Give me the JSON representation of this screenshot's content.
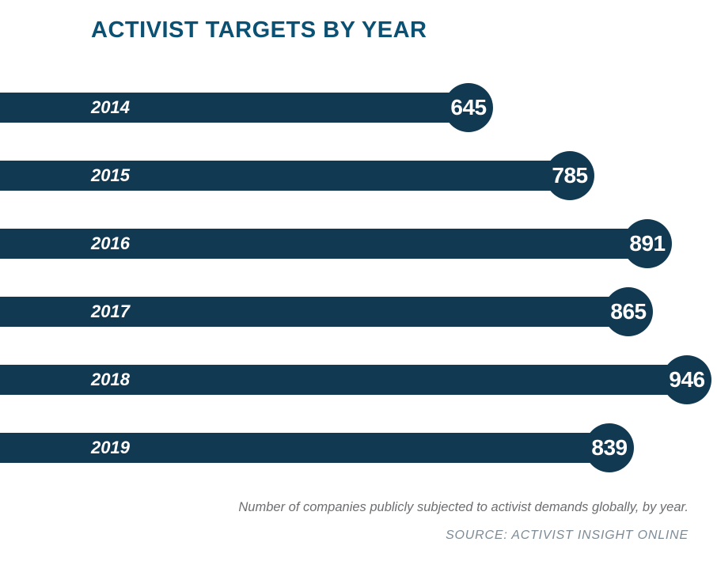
{
  "chart": {
    "title": "ACTIVIST TARGETS BY YEAR",
    "caption": "Number of companies publicly subjected to activist demands globally, by year.",
    "source": "SOURCE: ACTIVIST INSIGHT ONLINE"
  },
  "colors": {
    "title": "#0a5174",
    "bar": "#113a52",
    "bubble": "#113a52",
    "bar_text": "#ffffff",
    "caption_text": "#6d6e71",
    "source_text": "#7c8b95"
  },
  "chart_data": {
    "type": "bar",
    "orientation": "horizontal",
    "title": "ACTIVIST TARGETS BY YEAR",
    "categories": [
      "2014",
      "2015",
      "2016",
      "2017",
      "2018",
      "2019"
    ],
    "values": [
      645,
      785,
      891,
      865,
      946,
      839
    ],
    "xlabel": "",
    "ylabel": "",
    "xlim": [
      0,
      946
    ],
    "grid": false,
    "legend": false,
    "value_label_style": "circle-at-bar-end",
    "category_label_style": "inside-bar-left-italic"
  }
}
